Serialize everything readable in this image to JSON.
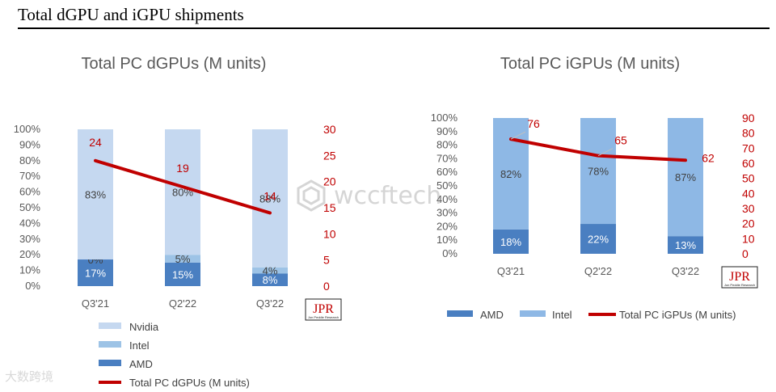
{
  "page": {
    "title": "Total dGPU and iGPU shipments",
    "watermark": "wccftech",
    "bottom_mark": "大数跨境"
  },
  "colors": {
    "nvidia": "#c5d8f0",
    "intel_d": "#9dc3e6",
    "amd": "#4a7fc1",
    "intel_i": "#8eb8e5",
    "line": "#c00000",
    "right_axis": "#c00000",
    "logo": "#c00000"
  },
  "chart_data": [
    {
      "type": "bar",
      "stacked": true,
      "title": "Total PC dGPUs (M units)",
      "categories": [
        "Q3'21",
        "Q2'22",
        "Q3'22"
      ],
      "series": [
        {
          "name": "AMD",
          "values": [
            17,
            15,
            8
          ],
          "labels": [
            "17%",
            "15%",
            "8%"
          ]
        },
        {
          "name": "Intel",
          "values": [
            0,
            5,
            4
          ],
          "labels": [
            "0%",
            "5%",
            "4%"
          ]
        },
        {
          "name": "Nvidia",
          "values": [
            83,
            80,
            88
          ],
          "labels": [
            "83%",
            "80%",
            "88%"
          ]
        }
      ],
      "line": {
        "name": "Total PC dGPUs (M units)",
        "values": [
          24,
          19,
          14
        ],
        "labels": [
          "24",
          "19",
          "14"
        ]
      },
      "y_ticks": [
        "0%",
        "10%",
        "20%",
        "30%",
        "40%",
        "50%",
        "60%",
        "70%",
        "80%",
        "90%",
        "100%"
      ],
      "y2_ticks": [
        "0",
        "5",
        "10",
        "15",
        "20",
        "25",
        "30"
      ],
      "ylim": [
        0,
        100
      ],
      "y2lim": [
        0,
        30
      ],
      "legend": [
        "Nvidia",
        "Intel",
        "AMD",
        "Total PC dGPUs (M units)"
      ],
      "legend_placement": "bottom",
      "logo": {
        "text": "JPR",
        "sub": "Jon Peddie Research"
      }
    },
    {
      "type": "bar",
      "stacked": true,
      "title": "Total PC iGPUs (M units)",
      "categories": [
        "Q3'21",
        "Q2'22",
        "Q3'22"
      ],
      "series": [
        {
          "name": "AMD",
          "values": [
            18,
            22,
            13
          ],
          "labels": [
            "18%",
            "22%",
            "13%"
          ]
        },
        {
          "name": "Intel",
          "values": [
            82,
            78,
            87
          ],
          "labels": [
            "82%",
            "78%",
            "87%"
          ]
        }
      ],
      "line": {
        "name": "Total PC iGPUs (M units)",
        "values": [
          76,
          65,
          62
        ],
        "labels": [
          "76",
          "65",
          "62"
        ]
      },
      "y_ticks": [
        "0%",
        "10%",
        "20%",
        "30%",
        "40%",
        "50%",
        "60%",
        "70%",
        "80%",
        "90%",
        "100%"
      ],
      "y2_ticks": [
        "0",
        "10",
        "20",
        "30",
        "40",
        "50",
        "60",
        "70",
        "80",
        "90"
      ],
      "ylim": [
        0,
        100
      ],
      "y2lim": [
        0,
        90
      ],
      "legend": [
        "AMD",
        "Intel",
        "Total PC iGPUs (M units)"
      ],
      "legend_placement": "bottom",
      "logo": {
        "text": "JPR",
        "sub": "Jon Peddie Research"
      }
    }
  ]
}
